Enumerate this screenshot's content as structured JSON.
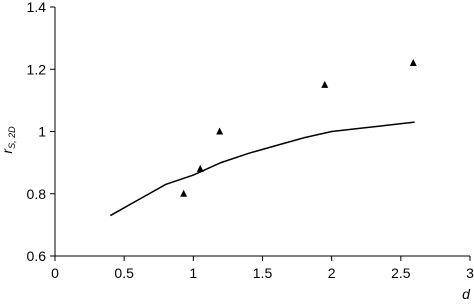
{
  "chart_data": {
    "type": "scatter",
    "xlabel": "d",
    "ylabel": "r",
    "ylabel_subscript": "S, 2D",
    "xlim": [
      0,
      3
    ],
    "xticks": [
      0,
      0.5,
      1,
      1.5,
      2,
      2.5,
      3
    ],
    "ylim": [
      0.6,
      1.4
    ],
    "yticks": [
      0.6,
      0.8,
      1,
      1.2,
      1.4
    ],
    "grid": false,
    "series": [
      {
        "mode": "markers",
        "marker": "triangle",
        "color": "#000000",
        "x": [
          0.93,
          1.05,
          1.19,
          1.95,
          2.59
        ],
        "values": [
          0.8,
          0.88,
          1.0,
          1.15,
          1.22
        ]
      },
      {
        "mode": "line",
        "color": "#000000",
        "x": [
          0.4,
          0.6,
          0.8,
          1.0,
          1.2,
          1.4,
          1.6,
          1.8,
          2.0,
          2.2,
          2.4,
          2.6
        ],
        "values": [
          0.73,
          0.78,
          0.83,
          0.86,
          0.9,
          0.93,
          0.955,
          0.98,
          1.0,
          1.01,
          1.02,
          1.03
        ]
      }
    ]
  }
}
